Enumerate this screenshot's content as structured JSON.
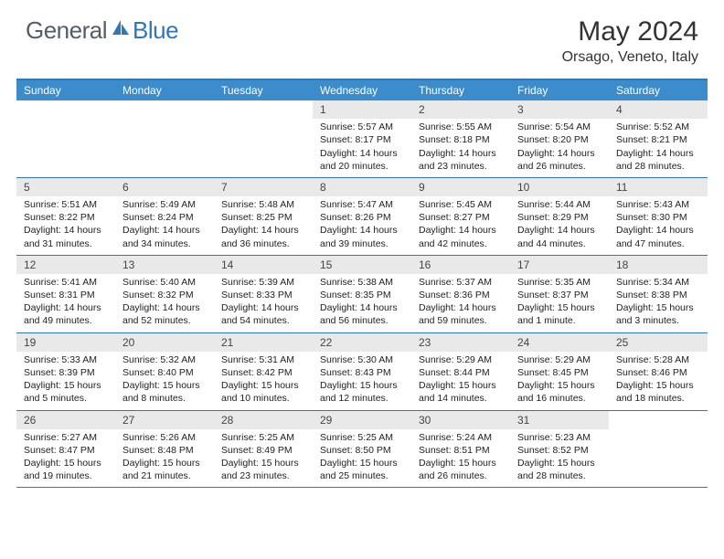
{
  "logo": {
    "text1": "General",
    "text2": "Blue"
  },
  "title": "May 2024",
  "location": "Orsago, Veneto, Italy",
  "colors": {
    "accent": "#2f76bb",
    "header_bg": "#3c8ccc",
    "daynum_bg": "#e9e9e9",
    "logo_gray": "#555d66"
  },
  "daysOfWeek": [
    "Sunday",
    "Monday",
    "Tuesday",
    "Wednesday",
    "Thursday",
    "Friday",
    "Saturday"
  ],
  "weeks": [
    [
      null,
      null,
      null,
      {
        "n": "1",
        "sr": "5:57 AM",
        "ss": "8:17 PM",
        "dl1": "Daylight: 14 hours",
        "dl2": "and 20 minutes."
      },
      {
        "n": "2",
        "sr": "5:55 AM",
        "ss": "8:18 PM",
        "dl1": "Daylight: 14 hours",
        "dl2": "and 23 minutes."
      },
      {
        "n": "3",
        "sr": "5:54 AM",
        "ss": "8:20 PM",
        "dl1": "Daylight: 14 hours",
        "dl2": "and 26 minutes."
      },
      {
        "n": "4",
        "sr": "5:52 AM",
        "ss": "8:21 PM",
        "dl1": "Daylight: 14 hours",
        "dl2": "and 28 minutes."
      }
    ],
    [
      {
        "n": "5",
        "sr": "5:51 AM",
        "ss": "8:22 PM",
        "dl1": "Daylight: 14 hours",
        "dl2": "and 31 minutes."
      },
      {
        "n": "6",
        "sr": "5:49 AM",
        "ss": "8:24 PM",
        "dl1": "Daylight: 14 hours",
        "dl2": "and 34 minutes."
      },
      {
        "n": "7",
        "sr": "5:48 AM",
        "ss": "8:25 PM",
        "dl1": "Daylight: 14 hours",
        "dl2": "and 36 minutes."
      },
      {
        "n": "8",
        "sr": "5:47 AM",
        "ss": "8:26 PM",
        "dl1": "Daylight: 14 hours",
        "dl2": "and 39 minutes."
      },
      {
        "n": "9",
        "sr": "5:45 AM",
        "ss": "8:27 PM",
        "dl1": "Daylight: 14 hours",
        "dl2": "and 42 minutes."
      },
      {
        "n": "10",
        "sr": "5:44 AM",
        "ss": "8:29 PM",
        "dl1": "Daylight: 14 hours",
        "dl2": "and 44 minutes."
      },
      {
        "n": "11",
        "sr": "5:43 AM",
        "ss": "8:30 PM",
        "dl1": "Daylight: 14 hours",
        "dl2": "and 47 minutes."
      }
    ],
    [
      {
        "n": "12",
        "sr": "5:41 AM",
        "ss": "8:31 PM",
        "dl1": "Daylight: 14 hours",
        "dl2": "and 49 minutes."
      },
      {
        "n": "13",
        "sr": "5:40 AM",
        "ss": "8:32 PM",
        "dl1": "Daylight: 14 hours",
        "dl2": "and 52 minutes."
      },
      {
        "n": "14",
        "sr": "5:39 AM",
        "ss": "8:33 PM",
        "dl1": "Daylight: 14 hours",
        "dl2": "and 54 minutes."
      },
      {
        "n": "15",
        "sr": "5:38 AM",
        "ss": "8:35 PM",
        "dl1": "Daylight: 14 hours",
        "dl2": "and 56 minutes."
      },
      {
        "n": "16",
        "sr": "5:37 AM",
        "ss": "8:36 PM",
        "dl1": "Daylight: 14 hours",
        "dl2": "and 59 minutes."
      },
      {
        "n": "17",
        "sr": "5:35 AM",
        "ss": "8:37 PM",
        "dl1": "Daylight: 15 hours",
        "dl2": "and 1 minute."
      },
      {
        "n": "18",
        "sr": "5:34 AM",
        "ss": "8:38 PM",
        "dl1": "Daylight: 15 hours",
        "dl2": "and 3 minutes."
      }
    ],
    [
      {
        "n": "19",
        "sr": "5:33 AM",
        "ss": "8:39 PM",
        "dl1": "Daylight: 15 hours",
        "dl2": "and 5 minutes."
      },
      {
        "n": "20",
        "sr": "5:32 AM",
        "ss": "8:40 PM",
        "dl1": "Daylight: 15 hours",
        "dl2": "and 8 minutes."
      },
      {
        "n": "21",
        "sr": "5:31 AM",
        "ss": "8:42 PM",
        "dl1": "Daylight: 15 hours",
        "dl2": "and 10 minutes."
      },
      {
        "n": "22",
        "sr": "5:30 AM",
        "ss": "8:43 PM",
        "dl1": "Daylight: 15 hours",
        "dl2": "and 12 minutes."
      },
      {
        "n": "23",
        "sr": "5:29 AM",
        "ss": "8:44 PM",
        "dl1": "Daylight: 15 hours",
        "dl2": "and 14 minutes."
      },
      {
        "n": "24",
        "sr": "5:29 AM",
        "ss": "8:45 PM",
        "dl1": "Daylight: 15 hours",
        "dl2": "and 16 minutes."
      },
      {
        "n": "25",
        "sr": "5:28 AM",
        "ss": "8:46 PM",
        "dl1": "Daylight: 15 hours",
        "dl2": "and 18 minutes."
      }
    ],
    [
      {
        "n": "26",
        "sr": "5:27 AM",
        "ss": "8:47 PM",
        "dl1": "Daylight: 15 hours",
        "dl2": "and 19 minutes."
      },
      {
        "n": "27",
        "sr": "5:26 AM",
        "ss": "8:48 PM",
        "dl1": "Daylight: 15 hours",
        "dl2": "and 21 minutes."
      },
      {
        "n": "28",
        "sr": "5:25 AM",
        "ss": "8:49 PM",
        "dl1": "Daylight: 15 hours",
        "dl2": "and 23 minutes."
      },
      {
        "n": "29",
        "sr": "5:25 AM",
        "ss": "8:50 PM",
        "dl1": "Daylight: 15 hours",
        "dl2": "and 25 minutes."
      },
      {
        "n": "30",
        "sr": "5:24 AM",
        "ss": "8:51 PM",
        "dl1": "Daylight: 15 hours",
        "dl2": "and 26 minutes."
      },
      {
        "n": "31",
        "sr": "5:23 AM",
        "ss": "8:52 PM",
        "dl1": "Daylight: 15 hours",
        "dl2": "and 28 minutes."
      },
      null
    ]
  ]
}
